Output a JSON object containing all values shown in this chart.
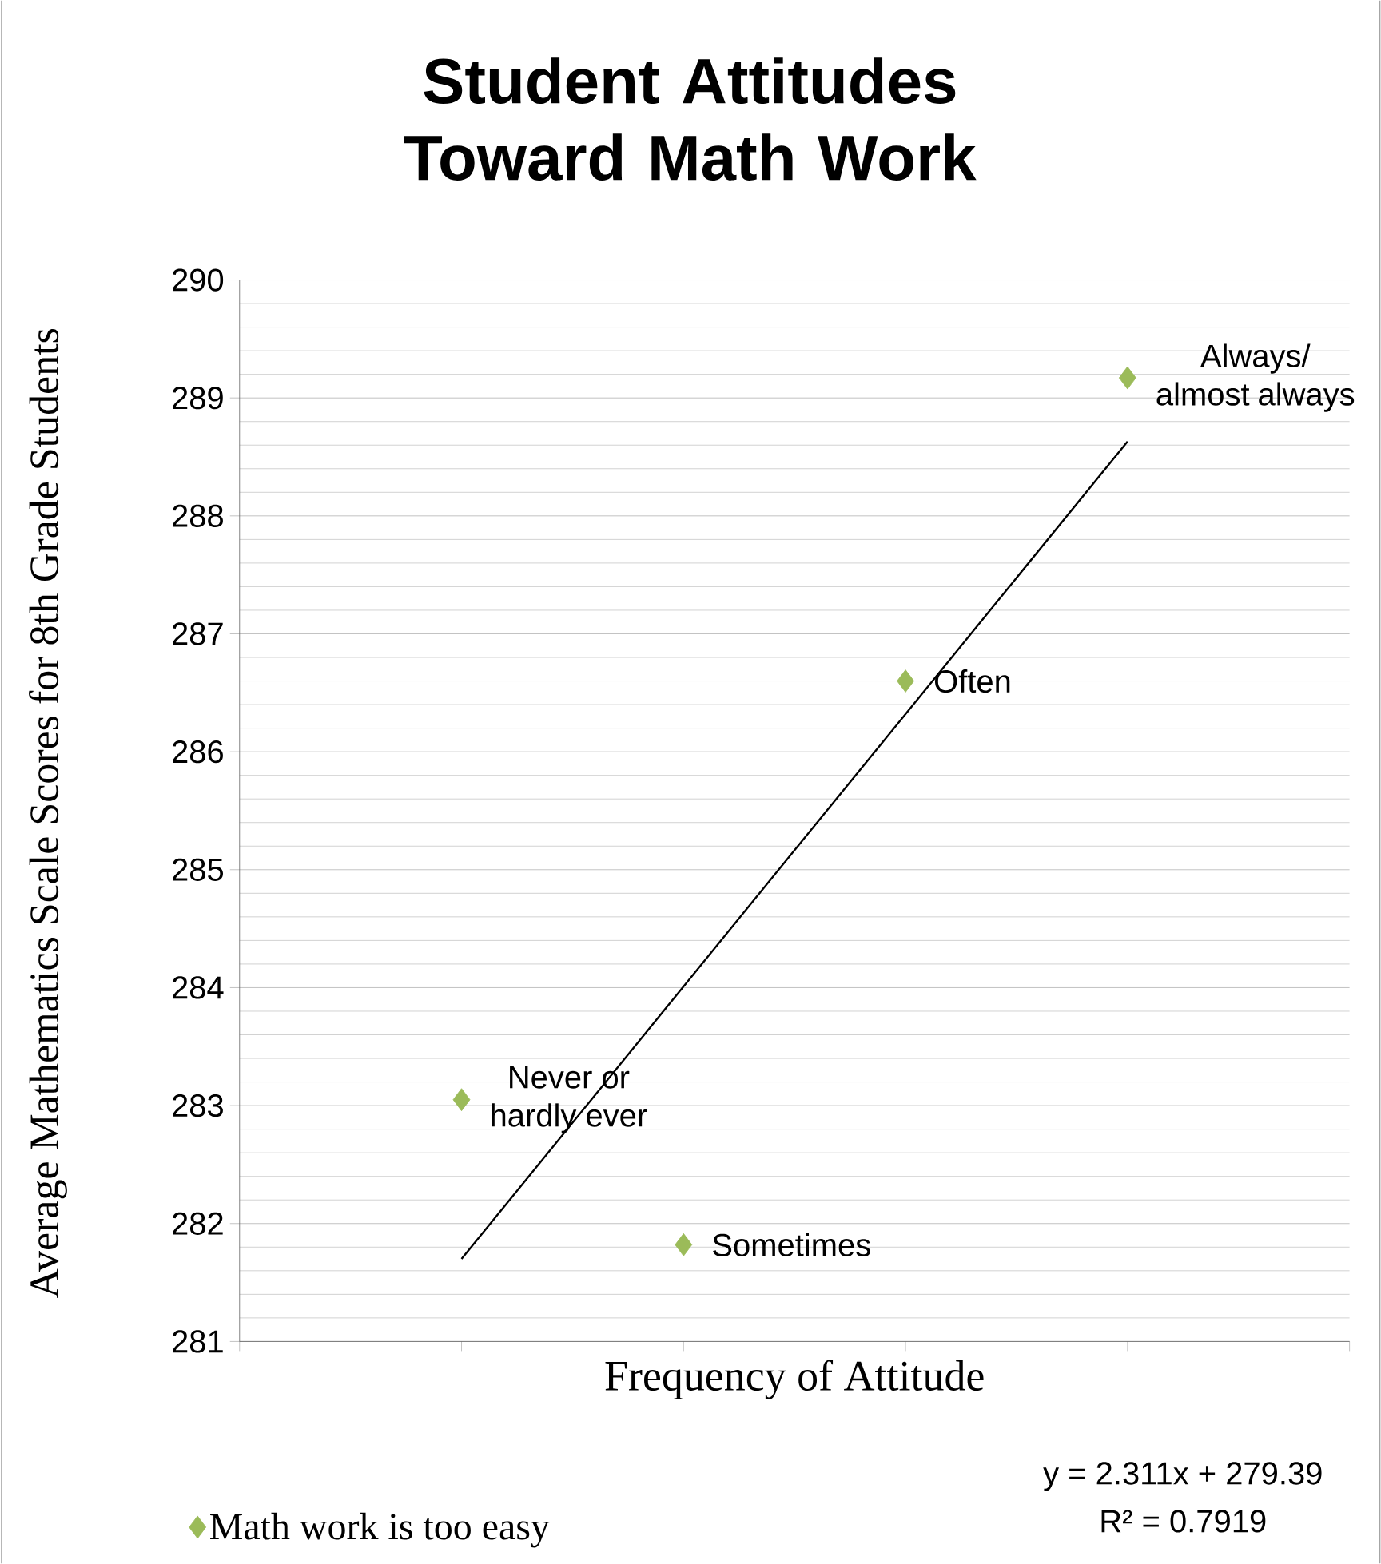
{
  "chart_data": {
    "type": "scatter",
    "title": "Student Attitudes Toward Math Work",
    "xlabel": "Frequency of Attitude",
    "ylabel": "Average Mathematics Scale Scores for 8th Grade Students",
    "categories": [
      null,
      null,
      null,
      null
    ],
    "ylim": [
      281,
      290
    ],
    "yticks": [
      281,
      282,
      283,
      284,
      285,
      286,
      287,
      288,
      289,
      290
    ],
    "grid": "y",
    "legend": "bottom left",
    "tick_labels": "y",
    "marker": "diamond",
    "series": [
      {
        "name": "Math work is too easy",
        "color": "#9bbb59",
        "values": [
          283.05,
          281.82,
          286.6,
          289.17
        ],
        "value_labels": [
          "Never or hardly ever",
          "Sometimes",
          "Often",
          "Always/ almost always"
        ]
      },
      {
        "type": "line",
        "marker": "none",
        "color": "#000000",
        "values": [
          281.7,
          284.01,
          286.32,
          288.63
        ]
      }
    ],
    "annotations": [
      "y = 2.311x + 279.39",
      "R² = 0.7919"
    ]
  }
}
